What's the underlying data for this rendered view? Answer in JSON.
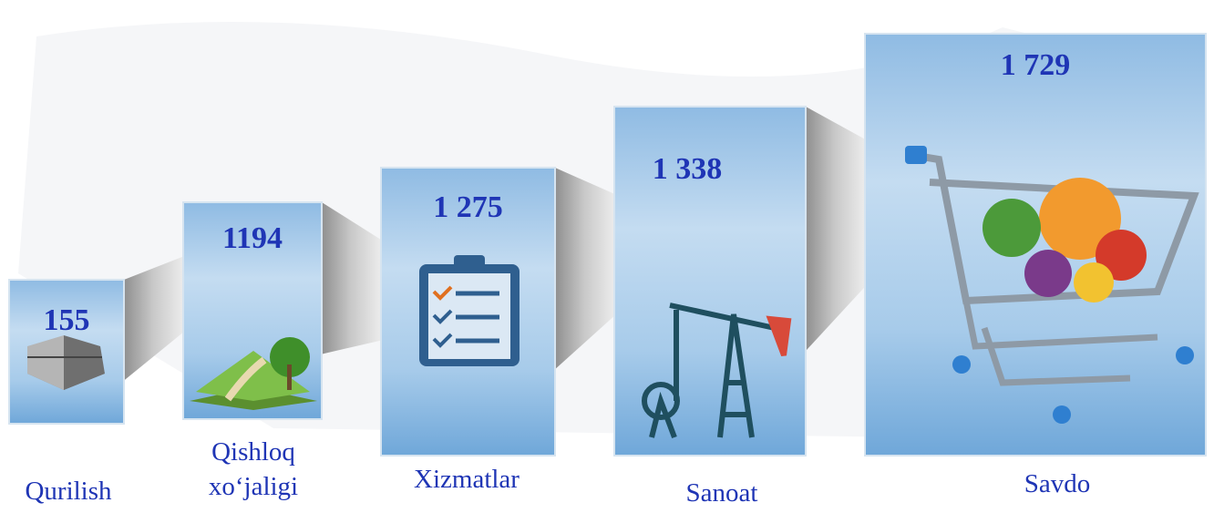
{
  "panels": [
    {
      "value": "155",
      "name_lines": [
        "Qurilish"
      ]
    },
    {
      "value": "1194",
      "name_lines": [
        "Qishloq",
        "xo‘jaligi"
      ]
    },
    {
      "value": "1 275",
      "name_lines": [
        "Xizmatlar"
      ]
    },
    {
      "value": "1 338",
      "name_lines": [
        "Sanoat"
      ]
    },
    {
      "value": "1 729",
      "name_lines": [
        "Savdo"
      ]
    }
  ]
}
